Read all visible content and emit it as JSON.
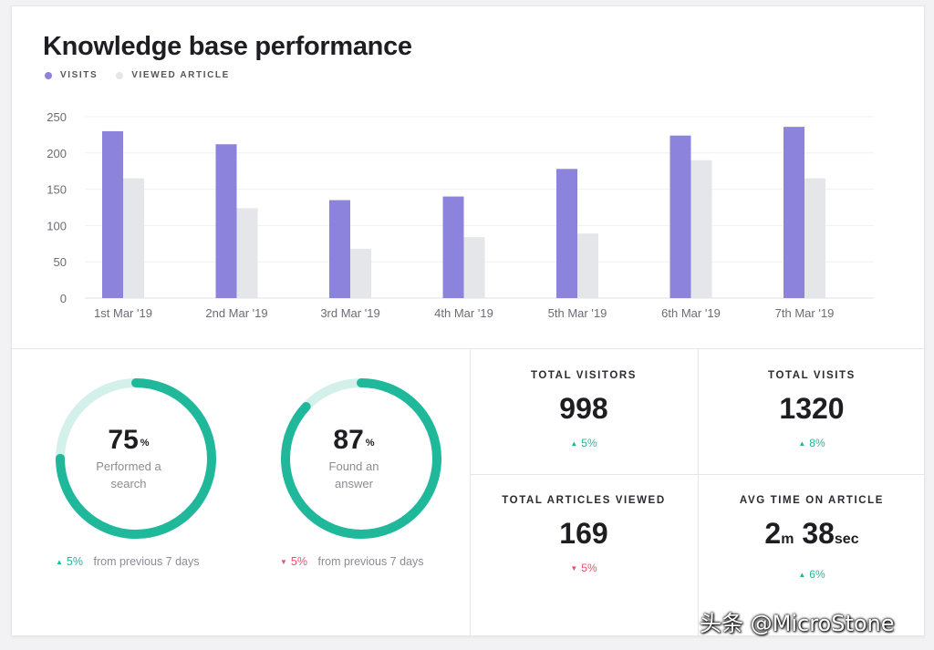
{
  "header": {
    "title": "Knowledge base performance"
  },
  "legend": [
    {
      "label": "VISITS",
      "color": "#8c84dc"
    },
    {
      "label": "VIEWED ARTICLE",
      "color": "#e4e6ea"
    }
  ],
  "chart_data": {
    "type": "bar",
    "title": "Knowledge base performance",
    "categories": [
      "1st Mar '19",
      "2nd Mar '19",
      "3rd Mar '19",
      "4th Mar '19",
      "5th Mar '19",
      "6th Mar '19",
      "7th Mar '19"
    ],
    "series": [
      {
        "name": "VISITS",
        "color": "#8c84dc",
        "values": [
          230,
          212,
          135,
          140,
          178,
          224,
          236
        ]
      },
      {
        "name": "VIEWED ARTICLE",
        "color": "#e4e6ea",
        "values": [
          165,
          124,
          68,
          84,
          89,
          190,
          165
        ]
      }
    ],
    "yticks": [
      0,
      50,
      100,
      150,
      200,
      250
    ],
    "ylim": [
      0,
      250
    ],
    "grid": true,
    "xlabel": "",
    "ylabel": ""
  },
  "donuts": [
    {
      "value": "75",
      "percent": 75,
      "unit": "%",
      "label": "Performed a search",
      "change": "5%",
      "direction": "up",
      "change_text": "from previous 7 days"
    },
    {
      "value": "87",
      "percent": 87,
      "unit": "%",
      "label": "Found an answer",
      "change": "5%",
      "direction": "down",
      "change_text": "from previous 7 days"
    }
  ],
  "stats": {
    "total_visitors": {
      "label": "TOTAL VISITORS",
      "value": "998",
      "change": "5%",
      "direction": "up"
    },
    "total_visits": {
      "label": "TOTAL VISITS",
      "value": "1320",
      "change": "8%",
      "direction": "up"
    },
    "total_articles_viewed": {
      "label": "TOTAL ARTICLES VIEWED",
      "value": "169",
      "change": "5%",
      "direction": "down"
    },
    "avg_time": {
      "label": "AVG TIME ON ARTICLE",
      "minutes": "2",
      "minutes_unit": "m",
      "seconds": "38",
      "seconds_unit": "sec",
      "change": "6%",
      "direction": "up"
    }
  },
  "icons": {
    "up": "▲",
    "down": "▼"
  },
  "colors": {
    "accent": "#1fb89a",
    "ring_track": "#d3f1ea",
    "down": "#ee4d6b",
    "visits": "#8c84dc",
    "viewed": "#e4e6ea"
  },
  "watermark": "头条 @MicroStone"
}
